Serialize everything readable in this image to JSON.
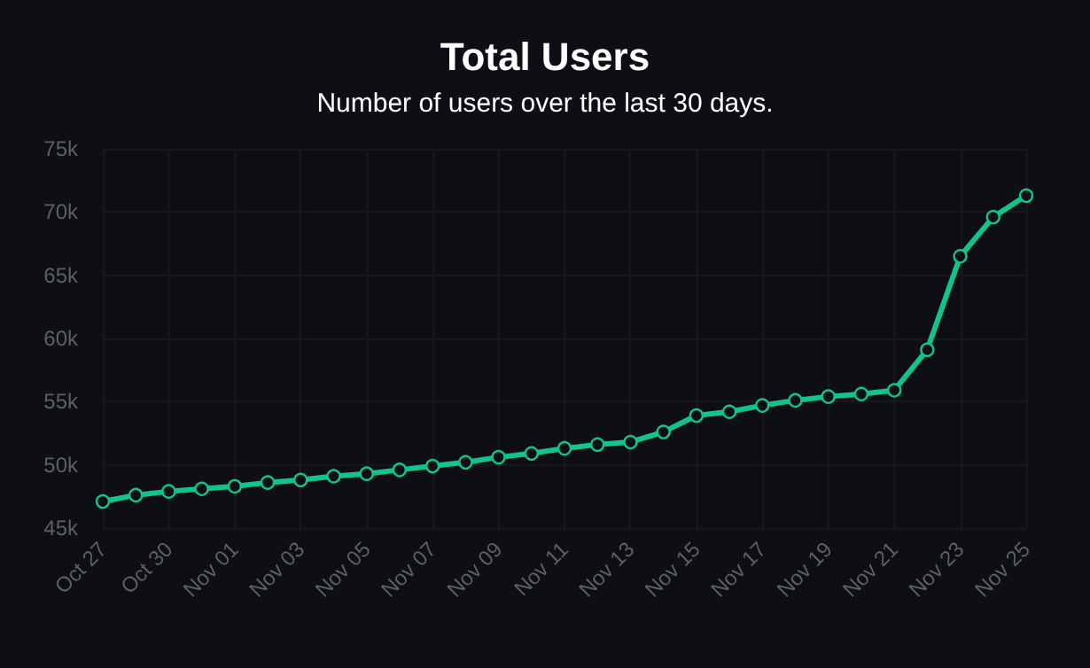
{
  "chart_data": {
    "type": "line",
    "title": "Total Users",
    "subtitle": "Number of users over the last 30 days.",
    "categories": [
      "Oct 27",
      null,
      "Oct 30",
      null,
      "Nov 01",
      null,
      "Nov 03",
      null,
      "Nov 05",
      null,
      "Nov 07",
      null,
      "Nov 09",
      null,
      "Nov 11",
      null,
      "Nov 13",
      null,
      "Nov 15",
      null,
      "Nov 17",
      null,
      "Nov 19",
      null,
      "Nov 21",
      null,
      "Nov 23",
      null,
      "Nov 25"
    ],
    "series": [
      {
        "color": "#10c48a",
        "values": [
          47100,
          47600,
          47900,
          48100,
          48300,
          48600,
          48800,
          49100,
          49300,
          49600,
          49900,
          50200,
          50600,
          50900,
          51300,
          51600,
          51800,
          52600,
          53900,
          54200,
          54700,
          55100,
          55400,
          55600,
          55900,
          59100,
          66500,
          69600,
          71300
        ]
      }
    ],
    "ylim": [
      45000,
      75000
    ],
    "yticks": [
      {
        "value": 45000,
        "label": "45k"
      },
      {
        "value": 50000,
        "label": "50k"
      },
      {
        "value": 55000,
        "label": "55k"
      },
      {
        "value": 60000,
        "label": "60k"
      },
      {
        "value": 65000,
        "label": "65k"
      },
      {
        "value": 70000,
        "label": "70k"
      },
      {
        "value": 75000,
        "label": "75k"
      }
    ],
    "grid": true,
    "marker": "circle",
    "line_style": "solid"
  }
}
